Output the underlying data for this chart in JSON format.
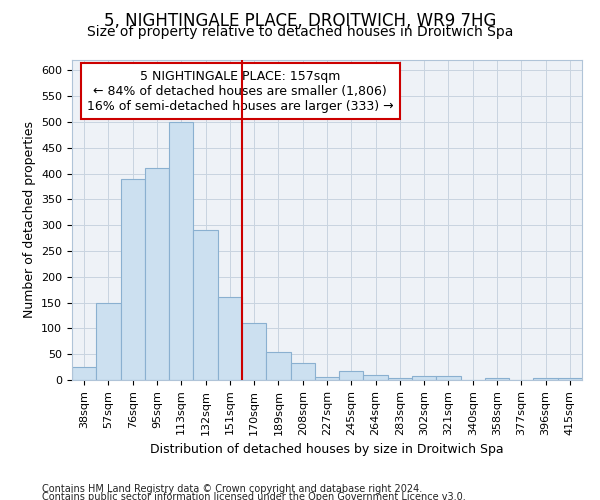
{
  "title": "5, NIGHTINGALE PLACE, DROITWICH, WR9 7HG",
  "subtitle": "Size of property relative to detached houses in Droitwich Spa",
  "xlabel": "Distribution of detached houses by size in Droitwich Spa",
  "ylabel": "Number of detached properties",
  "footnote1": "Contains HM Land Registry data © Crown copyright and database right 2024.",
  "footnote2": "Contains public sector information licensed under the Open Government Licence v3.0.",
  "annotation_line1": "5 NIGHTINGALE PLACE: 157sqm",
  "annotation_line2": "← 84% of detached houses are smaller (1,806)",
  "annotation_line3": "16% of semi-detached houses are larger (333) →",
  "bar_edge_color": "#8ab0d0",
  "bar_face_color": "#cce0f0",
  "plot_bg_color": "#eef2f7",
  "vline_color": "#cc0000",
  "annotation_box_color": "#cc0000",
  "categories": [
    "38sqm",
    "57sqm",
    "76sqm",
    "95sqm",
    "113sqm",
    "132sqm",
    "151sqm",
    "170sqm",
    "189sqm",
    "208sqm",
    "227sqm",
    "245sqm",
    "264sqm",
    "283sqm",
    "302sqm",
    "321sqm",
    "340sqm",
    "358sqm",
    "377sqm",
    "396sqm",
    "415sqm"
  ],
  "values": [
    25,
    150,
    390,
    410,
    500,
    290,
    160,
    110,
    55,
    33,
    5,
    17,
    10,
    3,
    7,
    7,
    0,
    3,
    0,
    3,
    3
  ],
  "ylim": [
    0,
    620
  ],
  "yticks": [
    0,
    50,
    100,
    150,
    200,
    250,
    300,
    350,
    400,
    450,
    500,
    550,
    600
  ],
  "vline_x_index": 6,
  "title_fontsize": 12,
  "subtitle_fontsize": 10,
  "xlabel_fontsize": 9,
  "ylabel_fontsize": 9,
  "tick_fontsize": 8,
  "annotation_fontsize": 9,
  "footnote_fontsize": 7
}
